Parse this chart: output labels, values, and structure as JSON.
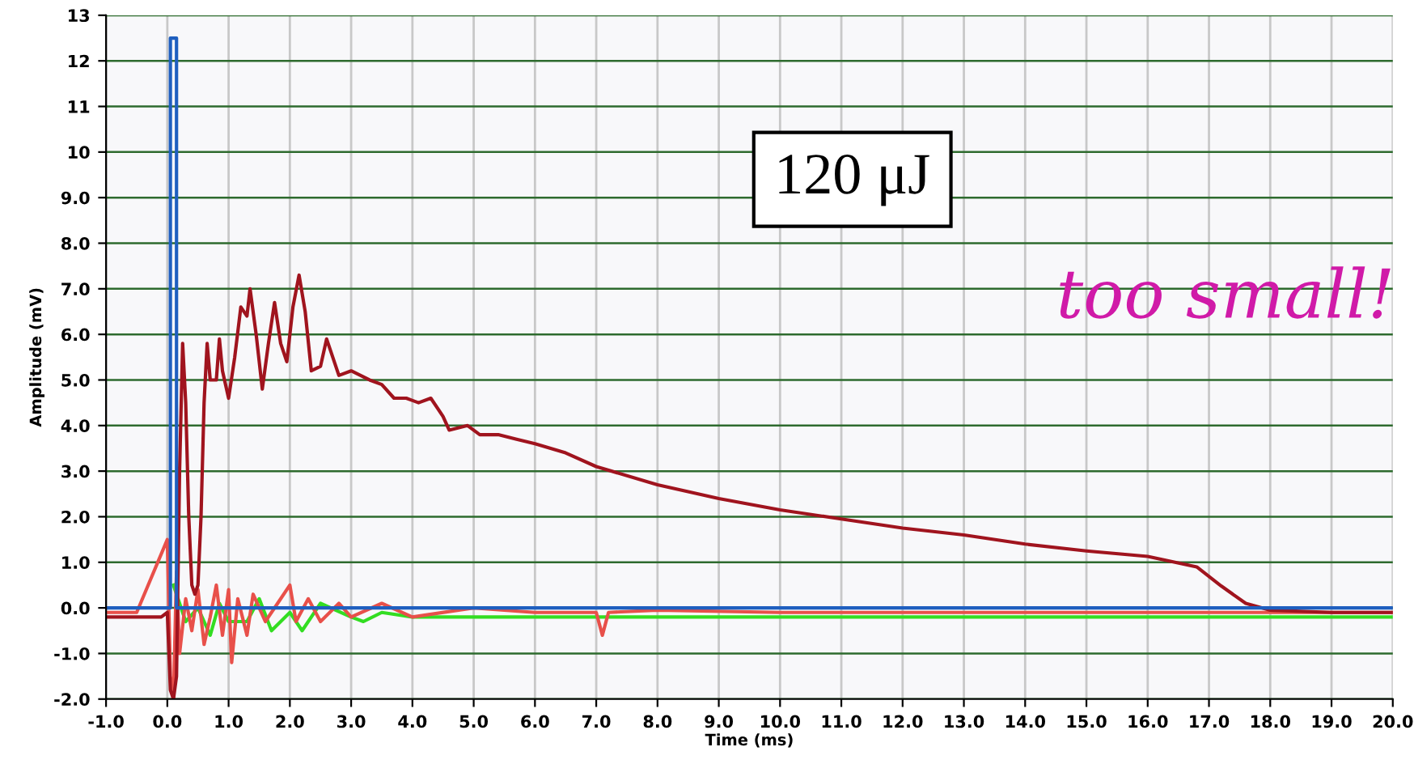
{
  "chart_data": {
    "type": "line",
    "xlabel": "Time (ms)",
    "ylabel": "Amplitude (mV)",
    "annotations": [
      "120 μJ",
      "too small!"
    ],
    "xlim": [
      -1.0,
      20.0
    ],
    "xticks": [
      {
        "value": -1,
        "label": "-1.0"
      },
      {
        "value": 0,
        "label": "0.0"
      },
      {
        "value": 1,
        "label": "1.0"
      },
      {
        "value": 2,
        "label": "2.0"
      },
      {
        "value": 3,
        "label": "3.0"
      },
      {
        "value": 4,
        "label": "4.0"
      },
      {
        "value": 5,
        "label": "5.0"
      },
      {
        "value": 6,
        "label": "6.0"
      },
      {
        "value": 7,
        "label": "7.0"
      },
      {
        "value": 8,
        "label": "8.0"
      },
      {
        "value": 9,
        "label": "9.0"
      },
      {
        "value": 10,
        "label": "10.0"
      },
      {
        "value": 11,
        "label": "11.0"
      },
      {
        "value": 12,
        "label": "12.0"
      },
      {
        "value": 13,
        "label": "13.0"
      },
      {
        "value": 14,
        "label": "14.0"
      },
      {
        "value": 15,
        "label": "15.0"
      },
      {
        "value": 16,
        "label": "16.0"
      },
      {
        "value": 17,
        "label": "17.0"
      },
      {
        "value": 18,
        "label": "18.0"
      },
      {
        "value": 19,
        "label": "19.0"
      },
      {
        "value": 20,
        "label": "20.0"
      }
    ],
    "ylim": [
      -2.0,
      13.0
    ],
    "yticks": [
      {
        "value": -2,
        "label": "-2.0"
      },
      {
        "value": -1,
        "label": "-1.0"
      },
      {
        "value": 0,
        "label": "0.0"
      },
      {
        "value": 1,
        "label": "1.0"
      },
      {
        "value": 2,
        "label": "2.0"
      },
      {
        "value": 3,
        "label": "3.0"
      },
      {
        "value": 4,
        "label": "4.0"
      },
      {
        "value": 5,
        "label": "5.0"
      },
      {
        "value": 6,
        "label": "6.0"
      },
      {
        "value": 7,
        "label": "7.0"
      },
      {
        "value": 8,
        "label": "8.0"
      },
      {
        "value": 9,
        "label": "9.0"
      },
      10,
      11,
      12,
      13
    ],
    "grid": true,
    "line_style": "solid",
    "marker": "none",
    "series": [
      {
        "color": "#33dd22",
        "x": [
          0.1,
          0.3,
          0.5,
          0.7,
          0.85,
          1.0,
          1.3,
          1.5,
          1.7,
          2.0,
          2.2,
          2.5,
          3.0,
          3.2,
          3.5,
          4.0,
          4.5,
          5.0,
          6.0,
          7.0,
          8.0,
          9.0,
          10.0,
          11.0,
          12.0,
          13.0,
          14.0,
          15.0,
          16.0,
          17.0,
          18.0,
          19.0,
          20.0
        ],
        "values": [
          0.5,
          -0.3,
          0.0,
          -0.6,
          0.1,
          -0.3,
          -0.3,
          0.2,
          -0.5,
          -0.1,
          -0.5,
          0.1,
          -0.2,
          -0.3,
          -0.1,
          -0.2,
          -0.2,
          -0.2,
          -0.2,
          -0.2,
          -0.2,
          -0.2,
          -0.2,
          -0.2,
          -0.2,
          -0.2,
          -0.2,
          -0.2,
          -0.2,
          -0.2,
          -0.2,
          -0.2,
          -0.2
        ]
      },
      {
        "color": "#e8504a",
        "x": [
          -1.0,
          -0.5,
          0.0,
          0.05,
          0.1,
          0.15,
          0.2,
          0.3,
          0.4,
          0.5,
          0.6,
          0.7,
          0.8,
          0.9,
          1.0,
          1.05,
          1.15,
          1.3,
          1.4,
          1.6,
          1.8,
          2.0,
          2.1,
          2.3,
          2.5,
          2.8,
          3.0,
          3.5,
          4.0,
          5.0,
          6.0,
          7.0,
          7.1,
          7.2,
          8.0,
          10.0,
          12.0,
          14.0,
          16.0,
          18.0,
          20.0
        ],
        "values": [
          -0.1,
          -0.1,
          1.5,
          -1.5,
          -2.0,
          0.8,
          -1.0,
          0.2,
          -0.5,
          0.4,
          -0.8,
          -0.2,
          0.5,
          -0.6,
          0.4,
          -1.2,
          0.2,
          -0.6,
          0.3,
          -0.3,
          0.1,
          0.5,
          -0.3,
          0.2,
          -0.3,
          0.1,
          -0.2,
          0.1,
          -0.2,
          0.0,
          -0.1,
          -0.1,
          -0.6,
          -0.1,
          -0.05,
          -0.1,
          -0.1,
          -0.1,
          -0.1,
          -0.1,
          -0.1
        ]
      },
      {
        "color": "#a0141e",
        "x": [
          -1.0,
          -0.5,
          -0.1,
          0.0,
          0.05,
          0.1,
          0.15,
          0.2,
          0.25,
          0.3,
          0.35,
          0.4,
          0.45,
          0.5,
          0.55,
          0.6,
          0.65,
          0.7,
          0.8,
          0.85,
          0.9,
          1.0,
          1.1,
          1.2,
          1.3,
          1.35,
          1.45,
          1.55,
          1.65,
          1.75,
          1.85,
          1.95,
          2.05,
          2.15,
          2.25,
          2.35,
          2.5,
          2.6,
          2.8,
          3.0,
          3.3,
          3.5,
          3.7,
          3.9,
          4.1,
          4.3,
          4.5,
          4.6,
          4.9,
          5.1,
          5.4,
          5.7,
          6.0,
          6.5,
          7.0,
          8.0,
          9.0,
          10.0,
          11.0,
          12.0,
          13.0,
          14.0,
          15.0,
          16.0,
          16.8,
          17.2,
          17.6,
          18.0,
          19.0,
          20.0
        ],
        "values": [
          -0.2,
          -0.2,
          -0.2,
          -0.1,
          -1.8,
          -2.0,
          -1.5,
          3.0,
          5.8,
          4.5,
          2.0,
          0.5,
          0.3,
          0.5,
          2.0,
          4.5,
          5.8,
          5.0,
          5.0,
          5.9,
          5.2,
          4.6,
          5.5,
          6.6,
          6.4,
          7.0,
          6.0,
          4.8,
          5.8,
          6.7,
          5.8,
          5.4,
          6.6,
          7.3,
          6.5,
          5.2,
          5.3,
          5.9,
          5.1,
          5.2,
          5.0,
          4.9,
          4.6,
          4.6,
          4.5,
          4.6,
          4.2,
          3.9,
          4.0,
          3.8,
          3.8,
          3.7,
          3.6,
          3.4,
          3.1,
          2.7,
          2.4,
          2.15,
          1.95,
          1.75,
          1.6,
          1.4,
          1.25,
          1.13,
          0.9,
          0.48,
          0.1,
          -0.05,
          -0.1,
          -0.1
        ]
      },
      {
        "color": "#1f5fbf",
        "x": [
          -1.0,
          0.05,
          0.05,
          0.15,
          0.15,
          20.0
        ],
        "values": [
          0.0,
          0.0,
          12.5,
          12.5,
          0.0,
          0.0
        ]
      }
    ]
  }
}
